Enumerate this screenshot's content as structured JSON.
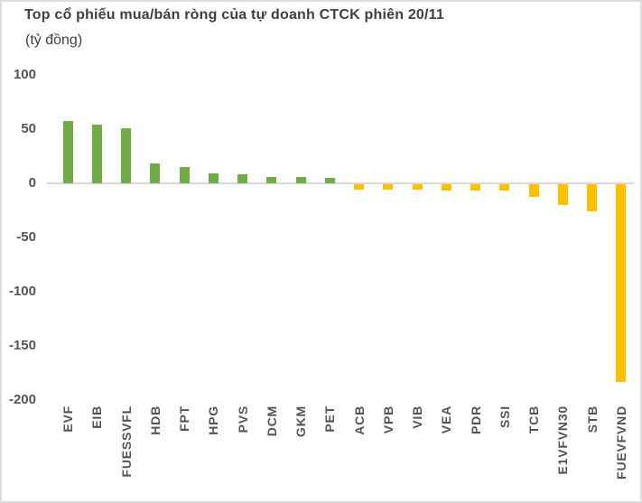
{
  "card": {
    "title": "Top cổ phiếu mua/bán ròng của tự doanh CTCK phiên 20/11",
    "subtitle": "(tỷ đồng)"
  },
  "colors": {
    "positive_bar": "#70AD47",
    "negative_bar": "#FFC000",
    "zero_axis_line": "#D9D9D9",
    "axis_text": "#545454",
    "title_text": "#404040",
    "card_border": "#DCDCDC",
    "background": "#FFFFFF"
  },
  "chart_data": {
    "type": "bar",
    "title": "Top cổ phiếu mua/bán ròng của tự doanh CTCK phiên 20/11",
    "subtitle": "(tỷ đồng)",
    "unit": "tỷ đồng",
    "categories": [
      "EVF",
      "EIB",
      "FUESSVFL",
      "HDB",
      "FPT",
      "HPG",
      "PVS",
      "DCM",
      "GKM",
      "PET",
      "ACB",
      "VPB",
      "VIB",
      "VEA",
      "PDR",
      "SSI",
      "TCB",
      "E1VFVN30",
      "STB",
      "FUEVFVND"
    ],
    "values": [
      58,
      54,
      51,
      18,
      15,
      9,
      8,
      6,
      6,
      5,
      -5,
      -5,
      -5,
      -6,
      -6,
      -6,
      -12,
      -19,
      -25,
      -183
    ],
    "yticks": [
      100,
      50,
      0,
      -50,
      -100,
      -150,
      -200
    ],
    "ylim": [
      -200,
      100
    ],
    "xlabel": "",
    "ylabel": "",
    "grid": false,
    "legend": false,
    "x_tick_rotation": 90,
    "bar_color_rule": "positive=green, negative=gold"
  }
}
